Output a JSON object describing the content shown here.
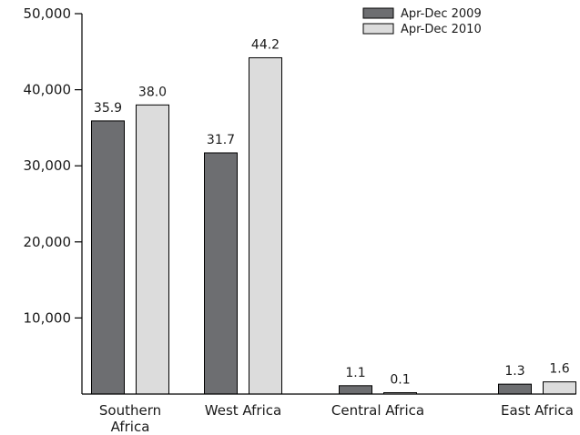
{
  "chart_data": {
    "type": "bar",
    "title": "",
    "xlabel": "",
    "ylabel": "",
    "ylim": [
      0,
      50000
    ],
    "yticks": [
      10000,
      20000,
      30000,
      40000,
      50000
    ],
    "ytick_labels": [
      "10,000",
      "20,000",
      "30,000",
      "40,000",
      "50,000"
    ],
    "categories": [
      [
        "Southern",
        "Africa"
      ],
      [
        "West Africa"
      ],
      [
        "Central Africa"
      ],
      [
        "East Africa"
      ]
    ],
    "series": [
      {
        "name": "Apr-Dec 2009",
        "color": "#6d6e71",
        "values": [
          35900,
          31700,
          1100,
          1300
        ],
        "labels": [
          "35.9",
          "31.7",
          "1.1",
          "1.3"
        ]
      },
      {
        "name": "Apr-Dec 2010",
        "color": "#dcdcdc",
        "values": [
          38000,
          44200,
          100,
          1600
        ],
        "labels": [
          "38.0",
          "44.2",
          "0.1",
          "1.6"
        ]
      }
    ],
    "legend_position": "top-right",
    "grid": false
  }
}
